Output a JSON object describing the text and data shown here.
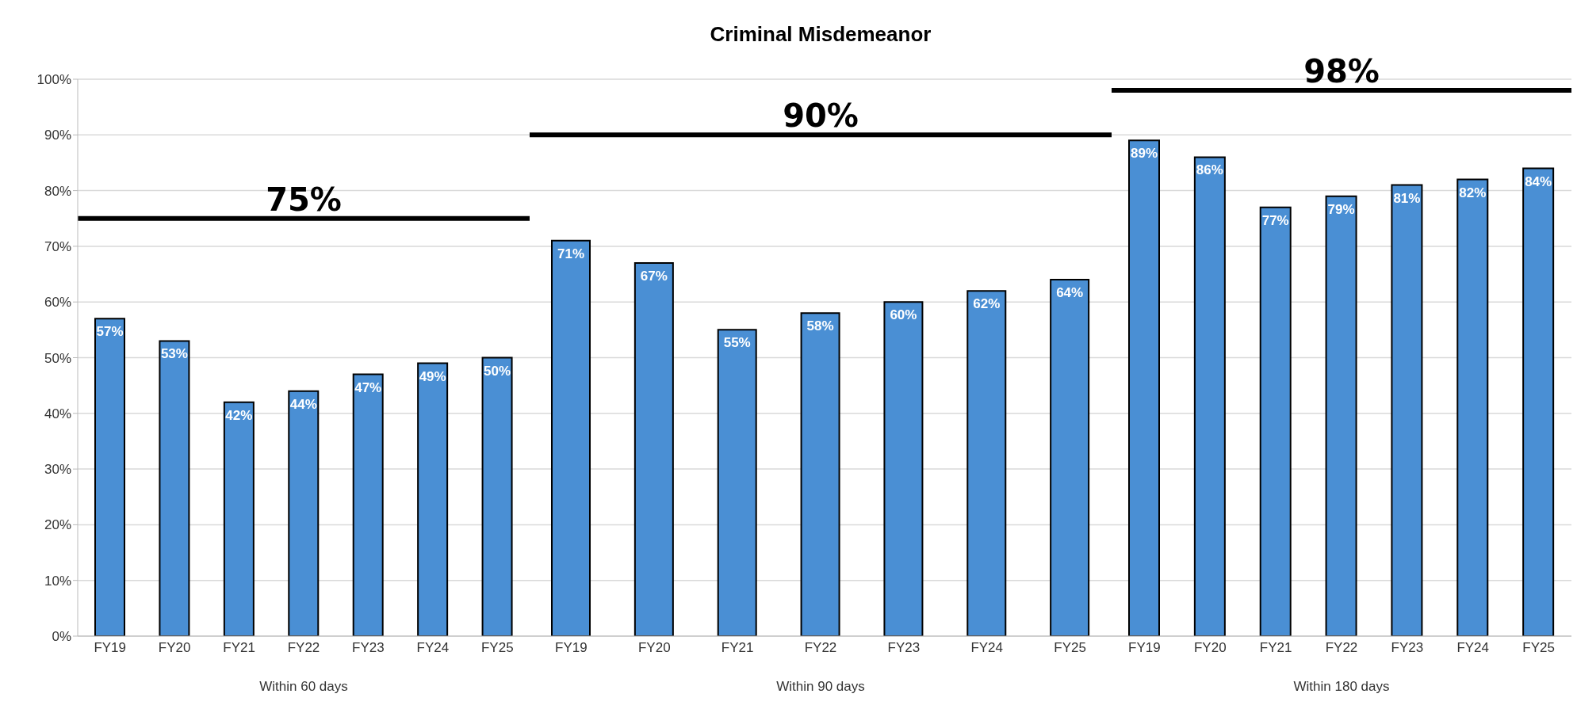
{
  "chart_data": [
    {
      "type": "bar",
      "categories": [
        "FY19",
        "FY20",
        "FY21",
        "FY22",
        "FY23",
        "FY24",
        "FY25"
      ],
      "xlabel": "Within 60 days",
      "values": [
        57,
        53,
        42,
        44,
        47,
        49,
        50
      ],
      "value_labels": [
        "57%",
        "53%",
        "42%",
        "44%",
        "47%",
        "49%",
        "50%"
      ],
      "color": "#4a8fd4",
      "ylim": [
        0,
        100
      ],
      "yticks": [
        {
          "value": 0,
          "label": "0%"
        },
        {
          "value": 10,
          "label": "10%"
        },
        {
          "value": 20,
          "label": "20%"
        },
        {
          "value": 30,
          "label": "30%"
        },
        {
          "value": 40,
          "label": "40%"
        },
        {
          "value": 50,
          "label": "50%"
        },
        {
          "value": 60,
          "label": "60%"
        },
        {
          "value": 70,
          "label": "70%"
        },
        {
          "value": 80,
          "label": "80%"
        },
        {
          "value": 90,
          "label": "90%"
        },
        {
          "value": 100,
          "label": "100%"
        }
      ],
      "grid": "y",
      "ref_lines": [
        {
          "axis": "y",
          "value": 75,
          "label": "75%",
          "color": "#000000"
        }
      ]
    },
    {
      "type": "bar",
      "title": "Criminal Misdemeanor",
      "categories": [
        "FY19",
        "FY20",
        "FY21",
        "FY22",
        "FY23",
        "FY24",
        "FY25"
      ],
      "xlabel": "Within 90 days",
      "values": [
        71,
        67,
        55,
        58,
        60,
        62,
        64
      ],
      "value_labels": [
        "71%",
        "67%",
        "55%",
        "58%",
        "60%",
        "62%",
        "64%"
      ],
      "color": "#4a8fd4",
      "ylim": [
        0,
        100
      ],
      "yticks": [
        0,
        10,
        20,
        30,
        40,
        50,
        60,
        70,
        80,
        90,
        100
      ],
      "grid": "y",
      "tick_labels": "x",
      "ref_lines": [
        {
          "axis": "y",
          "value": 90,
          "label": "90%",
          "color": "#000000"
        }
      ]
    },
    {
      "type": "bar",
      "categories": [
        "FY19",
        "FY20",
        "FY21",
        "FY22",
        "FY23",
        "FY24",
        "FY25"
      ],
      "xlabel": "Within 180 days",
      "values": [
        89,
        86,
        77,
        79,
        81,
        82,
        84
      ],
      "value_labels": [
        "89%",
        "86%",
        "77%",
        "79%",
        "81%",
        "82%",
        "84%"
      ],
      "color": "#4a8fd4",
      "ylim": [
        0,
        100
      ],
      "yticks": [
        0,
        10,
        20,
        30,
        40,
        50,
        60,
        70,
        80,
        90,
        100
      ],
      "grid": "y",
      "tick_labels": "x",
      "ref_lines": [
        {
          "axis": "y",
          "value": 98,
          "label": "98%",
          "color": "#000000"
        }
      ]
    }
  ]
}
